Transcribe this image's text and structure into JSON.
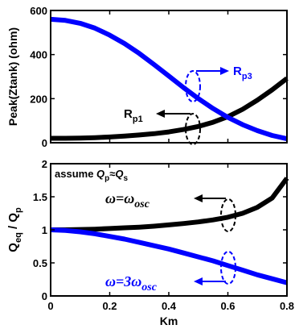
{
  "chart_data": [
    {
      "type": "line",
      "ylabel": "Peak(Ztank) (ohm)",
      "xlim": [
        0,
        0.8
      ],
      "ylim": [
        0,
        600
      ],
      "yticks": [
        0,
        200,
        400,
        600
      ],
      "yticklabels": [
        "0",
        "200",
        "400",
        "600"
      ],
      "grid": false,
      "series": [
        {
          "name": "Rp1",
          "color": "#000000",
          "x": [
            0,
            0.05,
            0.1,
            0.15,
            0.2,
            0.25,
            0.3,
            0.35,
            0.4,
            0.45,
            0.5,
            0.55,
            0.6,
            0.65,
            0.7,
            0.75,
            0.8
          ],
          "y": [
            20,
            20,
            21,
            23,
            26,
            30,
            35,
            41,
            49,
            60,
            74,
            93,
            118,
            152,
            193,
            240,
            292
          ]
        },
        {
          "name": "Rp3",
          "color": "#0000ff",
          "x": [
            0,
            0.05,
            0.1,
            0.15,
            0.2,
            0.25,
            0.3,
            0.35,
            0.4,
            0.45,
            0.5,
            0.55,
            0.6,
            0.65,
            0.7,
            0.75,
            0.8
          ],
          "y": [
            560,
            555,
            542,
            520,
            488,
            450,
            405,
            355,
            303,
            250,
            200,
            155,
            115,
            82,
            55,
            33,
            18
          ]
        }
      ],
      "annotations": {
        "rp1_label": "R",
        "rp1_sub": "p1",
        "rp3_label": "R",
        "rp3_sub": "p3"
      }
    },
    {
      "type": "line",
      "xlabel": "Km",
      "ylabel": "Q_eq / Q_p",
      "xlim": [
        0,
        0.8
      ],
      "ylim": [
        0,
        2
      ],
      "xticks": [
        0,
        0.2,
        0.4,
        0.6,
        0.8
      ],
      "xticklabels": [
        "0",
        "0.2",
        "0.4",
        "0.6",
        "0.8"
      ],
      "yticks": [
        0,
        0.5,
        1,
        1.5,
        2
      ],
      "yticklabels": [
        "0",
        "0.5",
        "1",
        "1.5",
        "2"
      ],
      "grid": false,
      "series": [
        {
          "name": "ω=ωosc",
          "color": "#000000",
          "x": [
            0,
            0.05,
            0.1,
            0.15,
            0.2,
            0.25,
            0.3,
            0.35,
            0.4,
            0.45,
            0.5,
            0.55,
            0.6,
            0.65,
            0.7,
            0.75,
            0.8
          ],
          "y": [
            1.0,
            1.0,
            1.005,
            1.01,
            1.02,
            1.03,
            1.04,
            1.055,
            1.075,
            1.095,
            1.12,
            1.15,
            1.19,
            1.25,
            1.34,
            1.48,
            1.78
          ]
        },
        {
          "name": "ω=3ωosc",
          "color": "#0000ff",
          "x": [
            0,
            0.05,
            0.1,
            0.15,
            0.2,
            0.25,
            0.3,
            0.35,
            0.4,
            0.45,
            0.5,
            0.55,
            0.6,
            0.65,
            0.7,
            0.75,
            0.8
          ],
          "y": [
            1.0,
            0.99,
            0.97,
            0.94,
            0.9,
            0.86,
            0.81,
            0.76,
            0.71,
            0.65,
            0.59,
            0.53,
            0.46,
            0.39,
            0.32,
            0.26,
            0.2
          ]
        }
      ],
      "annotations": {
        "assume_text": "assume",
        "assume_q": "Q",
        "assume_p": "p",
        "assume_approx": "≈",
        "assume_q2": "Q",
        "assume_s": "s",
        "osc_label_omega": "ω=ω",
        "osc_label_sub": "osc",
        "osc3_label_omega": "ω=3ω",
        "osc3_label_sub": "osc",
        "ylabel_q": "Q",
        "ylabel_eq": "eq",
        "ylabel_slash": " / Q",
        "ylabel_p": "p"
      }
    }
  ]
}
